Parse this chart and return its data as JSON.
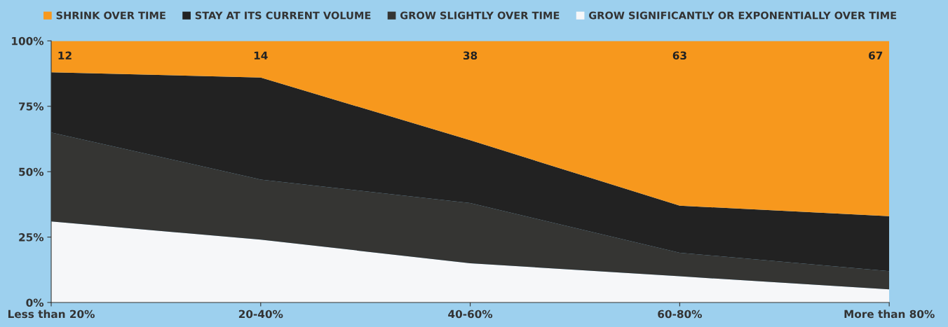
{
  "chart_data": {
    "type": "area",
    "stacked": true,
    "categories": [
      "Less than 20%",
      "20-40%",
      "40-60%",
      "60-80%",
      "More than 80%"
    ],
    "series": [
      {
        "name": "GROW SIGNIFICANTLY OR EXPONENTIALLY OVER TIME",
        "color": "#f6f7f9",
        "values": [
          31,
          24,
          15,
          10,
          5
        ]
      },
      {
        "name": "GROW SLIGHTLY OVER TIME",
        "color": "#353533",
        "values": [
          34,
          23,
          23,
          9,
          7
        ]
      },
      {
        "name": "STAY AT ITS CURRENT VOLUME",
        "color": "#222222",
        "values": [
          23,
          39,
          24,
          18,
          21
        ]
      },
      {
        "name": "SHRINK OVER TIME",
        "color": "#f7981d",
        "values": [
          12,
          14,
          38,
          63,
          67
        ],
        "value_labels": [
          "12",
          "14",
          "38",
          "63",
          "67"
        ]
      }
    ],
    "ylim": [
      0,
      100
    ],
    "yticks": [
      {
        "value": 0,
        "label": "0%"
      },
      {
        "value": 25,
        "label": "25%"
      },
      {
        "value": 50,
        "label": "50%"
      },
      {
        "value": 75,
        "label": "75%"
      },
      {
        "value": 100,
        "label": "100%"
      }
    ],
    "grid": false,
    "legend": "top"
  }
}
